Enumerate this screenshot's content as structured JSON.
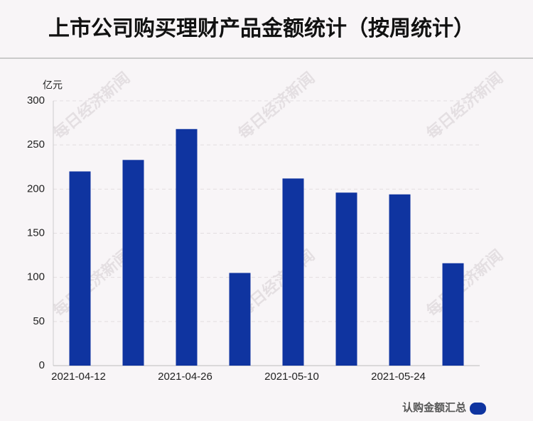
{
  "chart_data": {
    "type": "bar",
    "title": "上市公司购买理财产品金额统计（按周统计）",
    "y_unit": "亿元",
    "watermark": "每日经济新闻",
    "categories": [
      "2021-04-12",
      null,
      "2021-04-26",
      null,
      "2021-05-10",
      null,
      "2021-05-24",
      null
    ],
    "series": [
      {
        "name": "认购金额汇总",
        "color": "#0f34a0",
        "values": [
          220,
          233,
          268,
          105,
          212,
          196,
          194,
          116
        ]
      }
    ],
    "ylim": [
      0,
      300
    ],
    "yticks": [
      0,
      50,
      100,
      150,
      200,
      250,
      300
    ],
    "grid": true,
    "legend": "bottom-right"
  }
}
